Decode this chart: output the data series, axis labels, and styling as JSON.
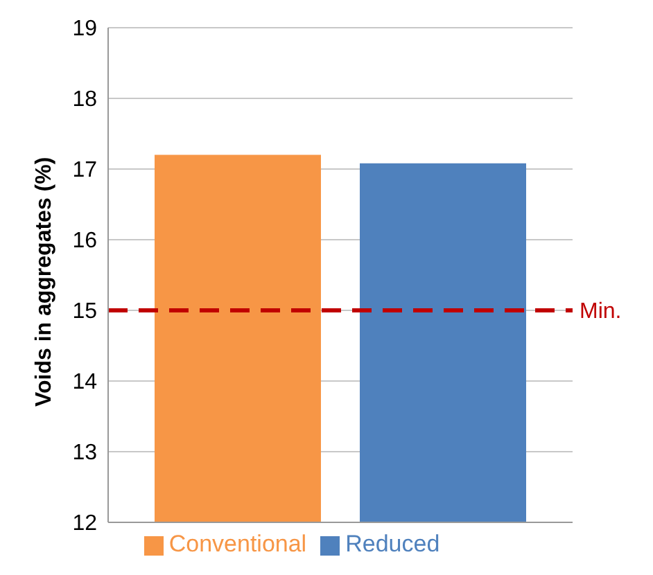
{
  "chart_data": {
    "type": "bar",
    "ylabel": "Voids in aggregates (%)",
    "categories": [
      null
    ],
    "series": [
      {
        "name": "Conventional",
        "color": "#f79646",
        "values": [
          17.2
        ]
      },
      {
        "name": "Reduced",
        "color": "#4f81bd",
        "values": [
          17.08
        ]
      }
    ],
    "ylim": [
      12,
      19
    ],
    "yticks": [
      12,
      13,
      14,
      15,
      16,
      17,
      18,
      19
    ],
    "grid": "y",
    "legend": "bottom",
    "ref_lines": [
      {
        "axis": "y",
        "value": 15,
        "label": "Min.",
        "color": "#c00000",
        "line_style": "dashed"
      }
    ]
  }
}
